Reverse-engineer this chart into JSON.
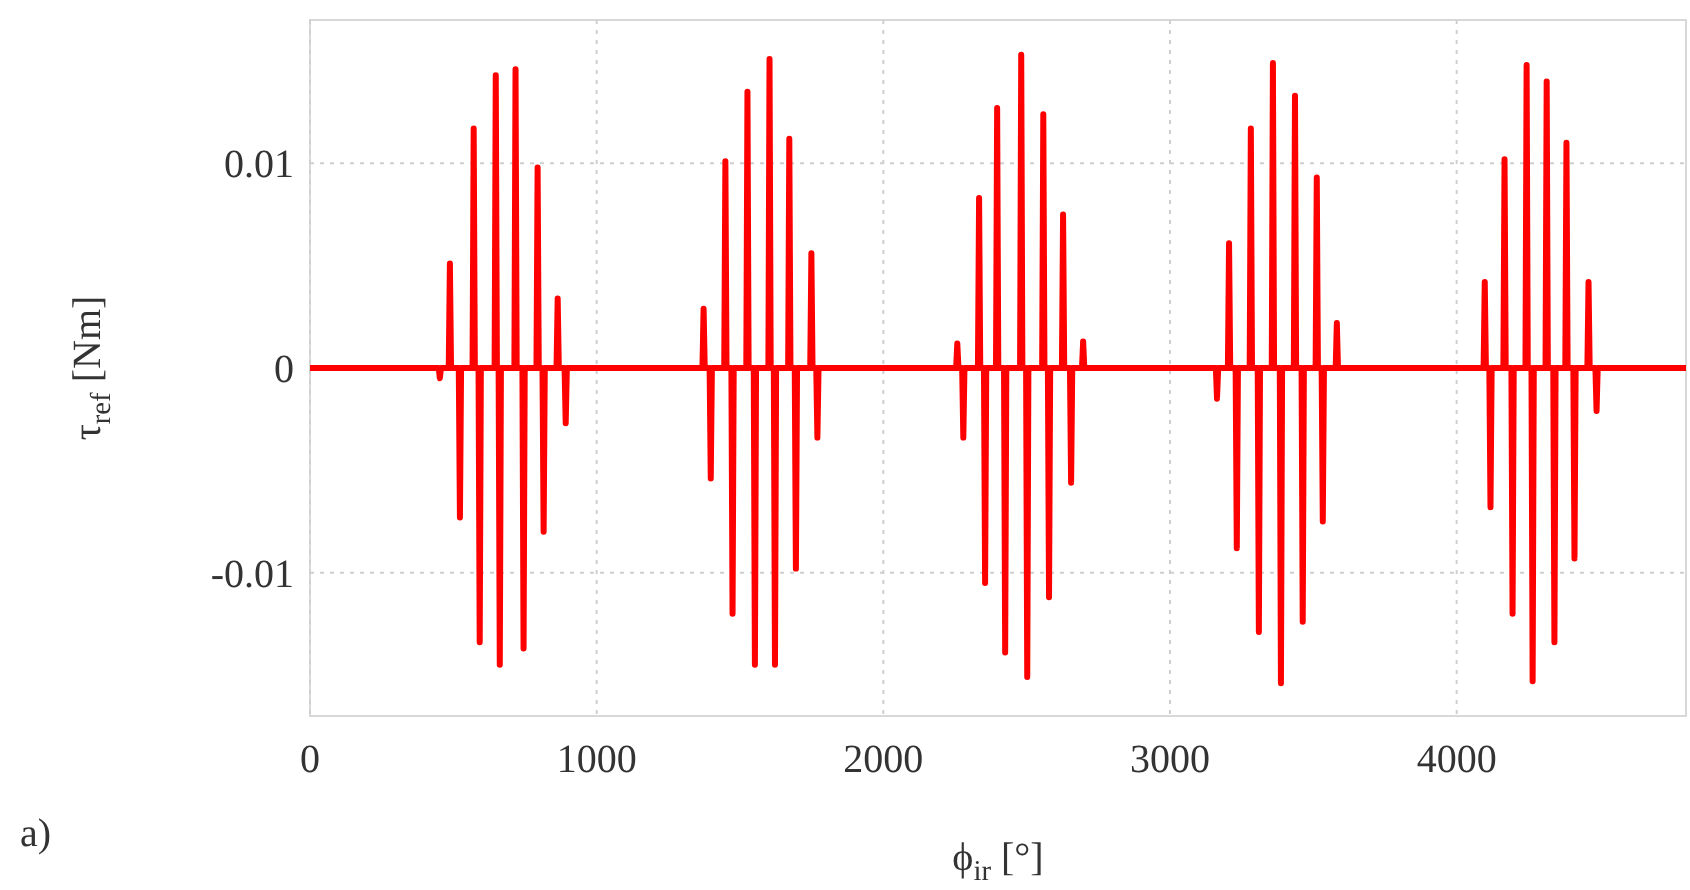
{
  "chart_data": {
    "type": "line",
    "xlabel": "ϕ$_{ir}$ [°]",
    "ylabel": "τ$_{ref}$ [Nm]",
    "annotations": [
      "a)"
    ],
    "xlim": [
      0,
      4800
    ],
    "xticks": [
      0,
      1000,
      2000,
      3000,
      4000
    ],
    "ylim": [
      -0.017,
      0.017
    ],
    "yticks": [
      -0.01,
      0,
      0.01
    ],
    "grid": true,
    "line_style": "solid",
    "series": [
      {
        "color": "#ff0000",
        "x": [
          0,
          449,
          453,
          457,
          484,
          488,
          492,
          519,
          523,
          527,
          567,
          571,
          575,
          588,
          592,
          596,
          644,
          648,
          652,
          658,
          662,
          666,
          713,
          717,
          721,
          741,
          745,
          749,
          790,
          794,
          798,
          811,
          815,
          819,
          860,
          864,
          868,
          888,
          892,
          896,
          1369,
          1373,
          1377,
          1394,
          1398,
          1402,
          1445,
          1449,
          1453,
          1470,
          1474,
          1478,
          1522,
          1526,
          1530,
          1548,
          1552,
          1556,
          1599,
          1603,
          1607,
          1618,
          1622,
          1626,
          1668,
          1672,
          1676,
          1691,
          1695,
          1699,
          1745,
          1749,
          1753,
          1766,
          1770,
          1774,
          2254,
          2258,
          2262,
          2275,
          2279,
          2283,
          2330,
          2334,
          2338,
          2351,
          2355,
          2359,
          2393,
          2397,
          2401,
          2421,
          2425,
          2429,
          2477,
          2481,
          2485,
          2498,
          2502,
          2506,
          2554,
          2558,
          2562,
          2574,
          2578,
          2582,
          2623,
          2627,
          2631,
          2651,
          2655,
          2659,
          2693,
          2697,
          2701,
          3160,
          3164,
          3168,
          3202,
          3206,
          3210,
          3229,
          3233,
          3237,
          3278,
          3282,
          3286,
          3306,
          3310,
          3314,
          3355,
          3359,
          3363,
          3383,
          3387,
          3391,
          3432,
          3436,
          3440,
          3459,
          3463,
          3467,
          3508,
          3512,
          3516,
          3529,
          3533,
          3537,
          3578,
          3582,
          3586,
          4094,
          4098,
          4102,
          4114,
          4118,
          4122,
          4163,
          4167,
          4171,
          4191,
          4195,
          4199,
          4240,
          4244,
          4248,
          4261,
          4265,
          4269,
          4310,
          4314,
          4318,
          4337,
          4341,
          4345,
          4379,
          4383,
          4387,
          4407,
          4411,
          4415,
          4456,
          4460,
          4464,
          4484,
          4488,
          4492,
          4800
        ],
        "values": [
          0,
          0,
          -0.0005,
          0,
          0,
          0.0051,
          0,
          0,
          -0.0073,
          0,
          0,
          0.0117,
          0,
          0,
          -0.0134,
          0,
          0,
          0.0143,
          0,
          0,
          -0.0145,
          0,
          0,
          0.0146,
          0,
          0,
          -0.0137,
          0,
          0,
          0.0098,
          0,
          0,
          -0.008,
          0,
          0,
          0.0034,
          0,
          0,
          -0.0027,
          0,
          0,
          0.0029,
          0,
          0,
          -0.0054,
          0,
          0,
          0.0101,
          0,
          0,
          -0.012,
          0,
          0,
          0.0135,
          0,
          0,
          -0.0145,
          0,
          0,
          0.0151,
          0,
          0,
          -0.0145,
          0,
          0,
          0.0112,
          0,
          0,
          -0.0098,
          0,
          0,
          0.0056,
          0,
          0,
          -0.0034,
          0,
          0,
          0.0012,
          0,
          0,
          -0.0034,
          0,
          0,
          0.0083,
          0,
          0,
          -0.0105,
          0,
          0,
          0.0127,
          0,
          0,
          -0.0139,
          0,
          0,
          0.0153,
          0,
          0,
          -0.0151,
          0,
          0,
          0.0124,
          0,
          0,
          -0.0112,
          0,
          0,
          0.0075,
          0,
          0,
          -0.0056,
          0,
          0,
          0.0013,
          0,
          0,
          -0.0015,
          0,
          0,
          0.0061,
          0,
          0,
          -0.0088,
          0,
          0,
          0.0117,
          0,
          0,
          -0.0129,
          0,
          0,
          0.0149,
          0,
          0,
          -0.0154,
          0,
          0,
          0.0133,
          0,
          0,
          -0.0124,
          0,
          0,
          0.0093,
          0,
          0,
          -0.0075,
          0,
          0,
          0.0022,
          0,
          0,
          0.0042,
          0,
          0,
          -0.0068,
          0,
          0,
          0.0102,
          0,
          0,
          -0.012,
          0,
          0,
          0.0148,
          0,
          0,
          -0.0153,
          0,
          0,
          0.014,
          0,
          0,
          -0.0134,
          0,
          0,
          0.011,
          0,
          0,
          -0.0093,
          0,
          0,
          0.0042,
          0,
          0,
          -0.0021,
          0,
          0
        ]
      }
    ]
  }
}
